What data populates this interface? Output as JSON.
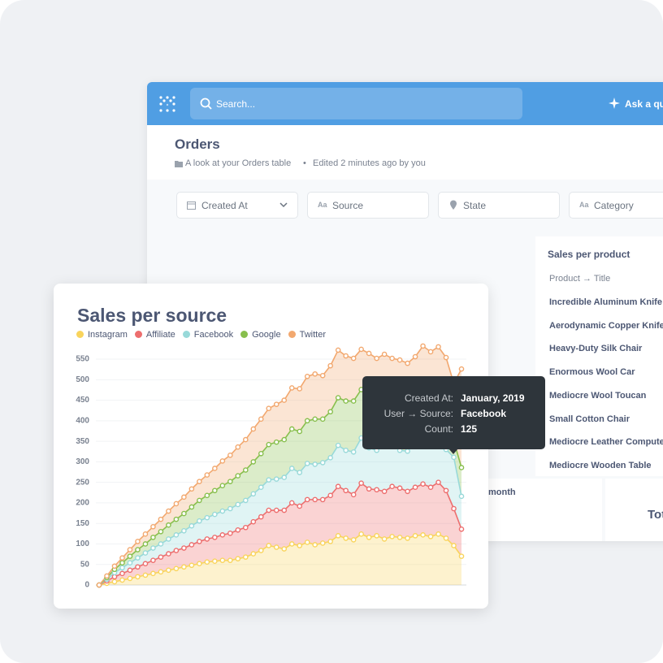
{
  "app": {
    "search": "Search...",
    "ask": "Ask a question",
    "dashboard": {
      "title": "Orders",
      "description": "A look at your Orders table",
      "edited": "Edited 2 minutes ago by you"
    },
    "filters": [
      "Created At",
      "Source",
      "State",
      "Category"
    ],
    "product_card": {
      "title": "Sales per product",
      "column": "Product → Title",
      "rows": [
        "Incredible Aluminum Knife",
        "Aerodynamic Copper Knife",
        "Heavy-Duty Silk Chair",
        "Enormous Wool Car",
        "Mediocre Wool Toucan",
        "Small Cotton Chair",
        "Mediocre Leather Computer",
        "Mediocre Wooden Table"
      ]
    },
    "month_card": {
      "title": "Sales per month"
    },
    "total_card": {
      "title": "Total"
    },
    "tooltip": {
      "labels": [
        "Created At:",
        "User → Source:",
        "Count:"
      ],
      "values": [
        "January, 2019",
        "Facebook",
        125
      ]
    }
  },
  "chart_data": {
    "type": "stacked-area",
    "title": "Sales per source",
    "categories": [
      null,
      null,
      null,
      null,
      null,
      null,
      null,
      null,
      null,
      null,
      null,
      null,
      null,
      null,
      null,
      null,
      null,
      null,
      null,
      null,
      null,
      null,
      null,
      null,
      null,
      null,
      null,
      null,
      null,
      null,
      null,
      null,
      null,
      null,
      null,
      null,
      null,
      null,
      null,
      null,
      null,
      null,
      null,
      null,
      null,
      null,
      null,
      null
    ],
    "ylim": [
      0,
      560
    ],
    "yticks": [
      0,
      50,
      100,
      150,
      200,
      250,
      300,
      350,
      400,
      450,
      500,
      550
    ],
    "grid": true,
    "series": [
      {
        "name": "Instagram",
        "color": "#f9d45c",
        "values": [
          0,
          4,
          8,
          12,
          16,
          20,
          24,
          28,
          32,
          36,
          40,
          44,
          48,
          52,
          56,
          58,
          60,
          60,
          64,
          68,
          76,
          84,
          96,
          92,
          88,
          100,
          96,
          104,
          98,
          102,
          106,
          120,
          114,
          110,
          124,
          116,
          120,
          112,
          118,
          116,
          114,
          120,
          122,
          118,
          124,
          114,
          96,
          70
        ]
      },
      {
        "name": "Affiliate",
        "color": "#ed6e6e",
        "values": [
          0,
          6,
          12,
          16,
          20,
          24,
          28,
          32,
          36,
          40,
          44,
          46,
          50,
          54,
          56,
          58,
          62,
          66,
          70,
          72,
          78,
          82,
          86,
          90,
          94,
          100,
          96,
          104,
          110,
          106,
          112,
          120,
          116,
          110,
          124,
          118,
          112,
          116,
          122,
          120,
          114,
          118,
          124,
          120,
          126,
          116,
          90,
          66
        ]
      },
      {
        "name": "Facebook",
        "color": "#98d9d9",
        "values": [
          0,
          4,
          10,
          14,
          18,
          22,
          26,
          30,
          32,
          36,
          38,
          42,
          46,
          50,
          52,
          56,
          58,
          60,
          62,
          66,
          68,
          72,
          74,
          76,
          80,
          84,
          82,
          88,
          86,
          90,
          92,
          100,
          98,
          104,
          110,
          100,
          96,
          110,
          104,
          92,
          98,
          108,
          112,
          102,
          106,
          100,
          125,
          80
        ]
      },
      {
        "name": "Google",
        "color": "#88bf4d",
        "values": [
          0,
          4,
          8,
          12,
          16,
          20,
          22,
          26,
          30,
          34,
          38,
          42,
          46,
          50,
          54,
          58,
          62,
          66,
          70,
          74,
          78,
          82,
          86,
          90,
          92,
          96,
          100,
          104,
          110,
          106,
          112,
          116,
          120,
          124,
          118,
          110,
          114,
          106,
          112,
          116,
          104,
          110,
          116,
          112,
          120,
          106,
          40,
          70
        ]
      },
      {
        "name": "Twitter",
        "color": "#f2a86f",
        "values": [
          0,
          4,
          8,
          12,
          16,
          20,
          24,
          26,
          30,
          34,
          38,
          40,
          44,
          46,
          50,
          54,
          60,
          64,
          70,
          74,
          80,
          84,
          88,
          92,
          96,
          100,
          104,
          108,
          110,
          106,
          112,
          116,
          110,
          104,
          98,
          120,
          110,
          118,
          96,
          104,
          110,
          100,
          108,
          116,
          104,
          118,
          140,
          240
        ]
      }
    ]
  }
}
